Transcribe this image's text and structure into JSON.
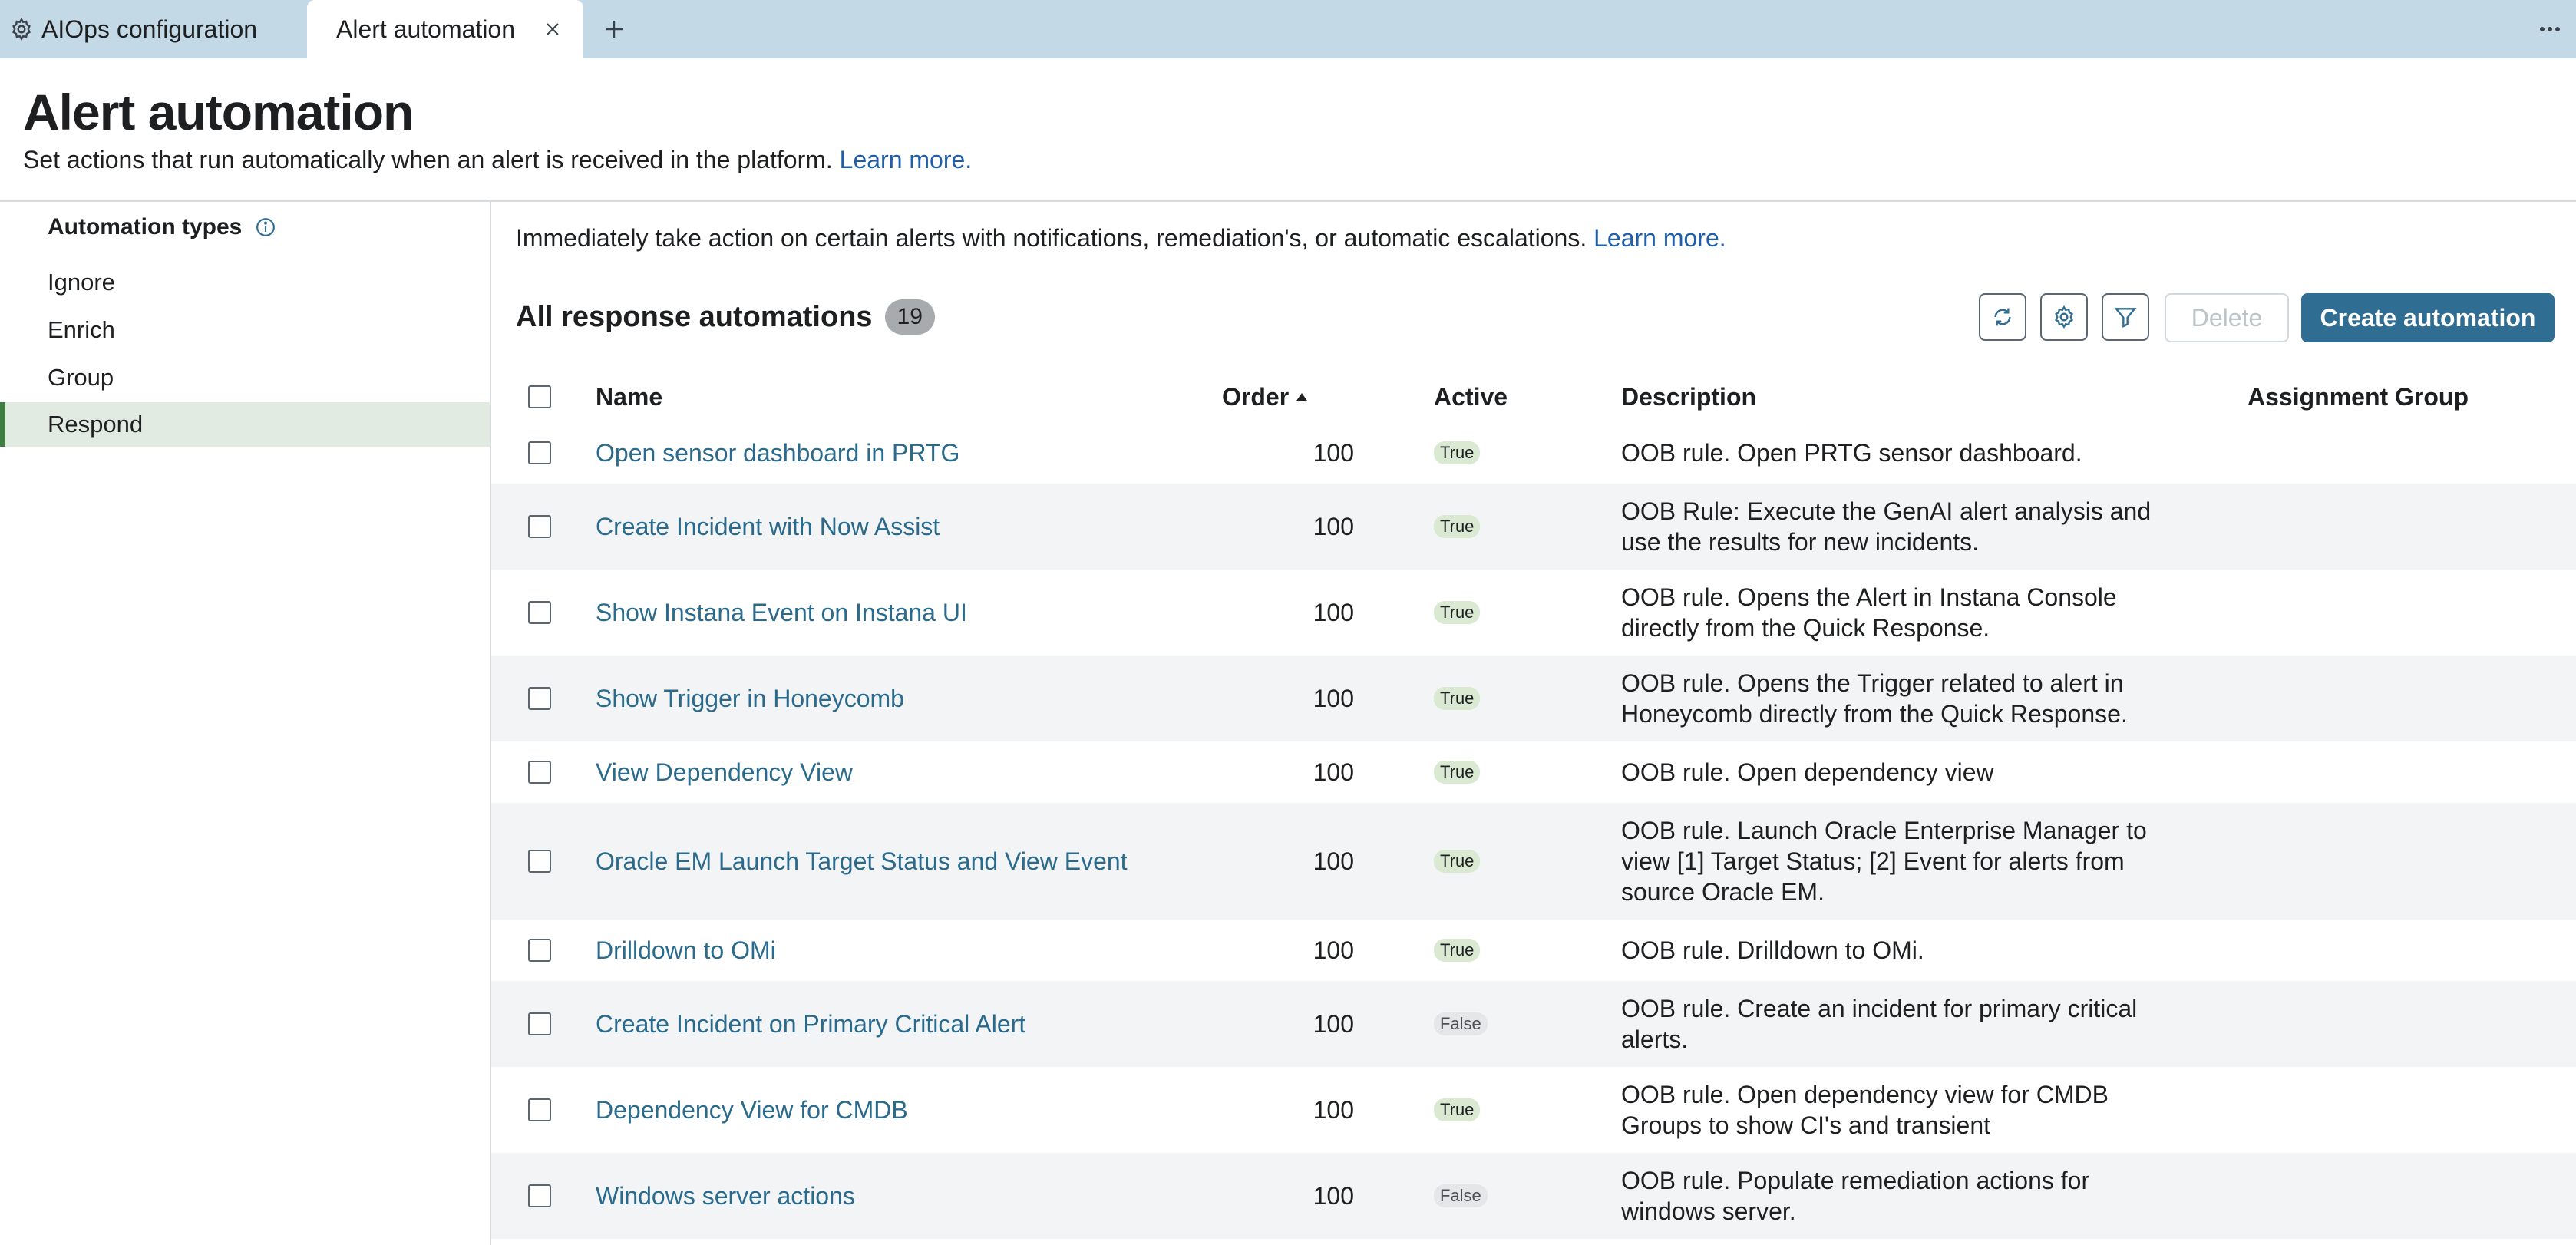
{
  "tabs": {
    "config_label": "AIOps configuration",
    "active_label": "Alert automation"
  },
  "header": {
    "title": "Alert automation",
    "subtitle": "Set actions that run automatically when an alert is received in the platform.",
    "learn_more": "Learn more."
  },
  "sidebar": {
    "heading": "Automation types",
    "items": [
      {
        "label": "Ignore"
      },
      {
        "label": "Enrich"
      },
      {
        "label": "Group"
      },
      {
        "label": "Respond"
      }
    ]
  },
  "main": {
    "intro": "Immediately take action on certain alerts with notifications, remediation's, or automatic escalations.",
    "learn_more": "Learn more.",
    "section_title": "All response automations",
    "count": "19",
    "delete_label": "Delete",
    "create_label": "Create automation"
  },
  "table": {
    "columns": {
      "name": "Name",
      "order": "Order",
      "active": "Active",
      "description": "Description",
      "assignment_group": "Assignment Group"
    },
    "rows": [
      {
        "name": "Open sensor dashboard in PRTG",
        "order": "100",
        "active": "True",
        "description": "OOB rule. Open PRTG sensor dashboard."
      },
      {
        "name": "Create Incident with Now Assist",
        "order": "100",
        "active": "True",
        "description": "OOB Rule: Execute the GenAI alert analysis and use the results for new incidents."
      },
      {
        "name": "Show Instana Event on Instana UI",
        "order": "100",
        "active": "True",
        "description": "OOB rule. Opens the Alert in Instana Console directly from the Quick Response."
      },
      {
        "name": "Show Trigger in Honeycomb",
        "order": "100",
        "active": "True",
        "description": "OOB rule. Opens the Trigger related to alert in Honeycomb directly from the Quick Response."
      },
      {
        "name": "View Dependency View",
        "order": "100",
        "active": "True",
        "description": "OOB rule. Open dependency view"
      },
      {
        "name": "Oracle EM Launch Target Status and View Event",
        "order": "100",
        "active": "True",
        "description": "OOB rule. Launch Oracle Enterprise Manager to view [1] Target Status; [2] Event for alerts from source Oracle EM."
      },
      {
        "name": "Drilldown to OMi",
        "order": "100",
        "active": "True",
        "description": "OOB rule. Drilldown to OMi."
      },
      {
        "name": "Create Incident on Primary Critical Alert",
        "order": "100",
        "active": "False",
        "description": "OOB rule. Create an incident for primary critical alerts."
      },
      {
        "name": "Dependency View for CMDB",
        "order": "100",
        "active": "True",
        "description": "OOB rule. Open dependency view for CMDB Groups to show CI's and transient"
      },
      {
        "name": "Windows server actions",
        "order": "100",
        "active": "False",
        "description": "OOB rule. Populate remediation actions for windows server."
      }
    ]
  }
}
